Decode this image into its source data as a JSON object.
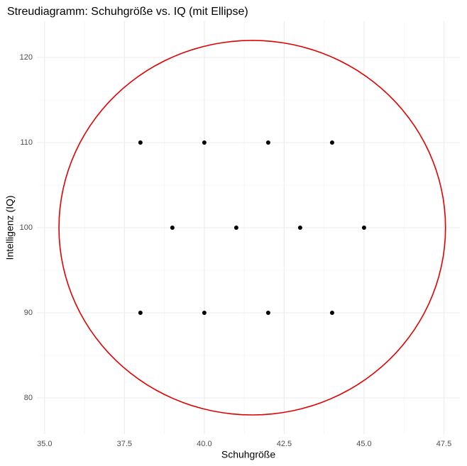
{
  "chart_data": {
    "type": "scatter",
    "title": "Streudiagramm: Schuhgröße vs. IQ (mit Ellipse)",
    "xlabel": "Schuhgröße",
    "ylabel": "Intelligenz (IQ)",
    "x": [
      38,
      40,
      42,
      44,
      39,
      41,
      43,
      45,
      38,
      40,
      42,
      44
    ],
    "values": [
      110,
      110,
      110,
      110,
      100,
      100,
      100,
      100,
      90,
      90,
      90,
      90
    ],
    "color": "#000000",
    "ellipse": {
      "cx": 41.5,
      "cy": 100,
      "rx": 6.05,
      "ry": 22,
      "color": "#e00000"
    },
    "xlim": [
      34.76,
      48.0
    ],
    "ylim": [
      75.75,
      124.25
    ],
    "xticks": [
      {
        "value": 35,
        "label": "35.0"
      },
      {
        "value": 37.5,
        "label": "37.5"
      },
      {
        "value": 40,
        "label": "40.0"
      },
      {
        "value": 42.5,
        "label": "42.5"
      },
      {
        "value": 45,
        "label": "45.0"
      },
      {
        "value": 47.5,
        "label": "47.5"
      }
    ],
    "yticks": [
      80,
      90,
      100,
      110,
      120
    ],
    "grid": true,
    "minor_grid": true
  }
}
